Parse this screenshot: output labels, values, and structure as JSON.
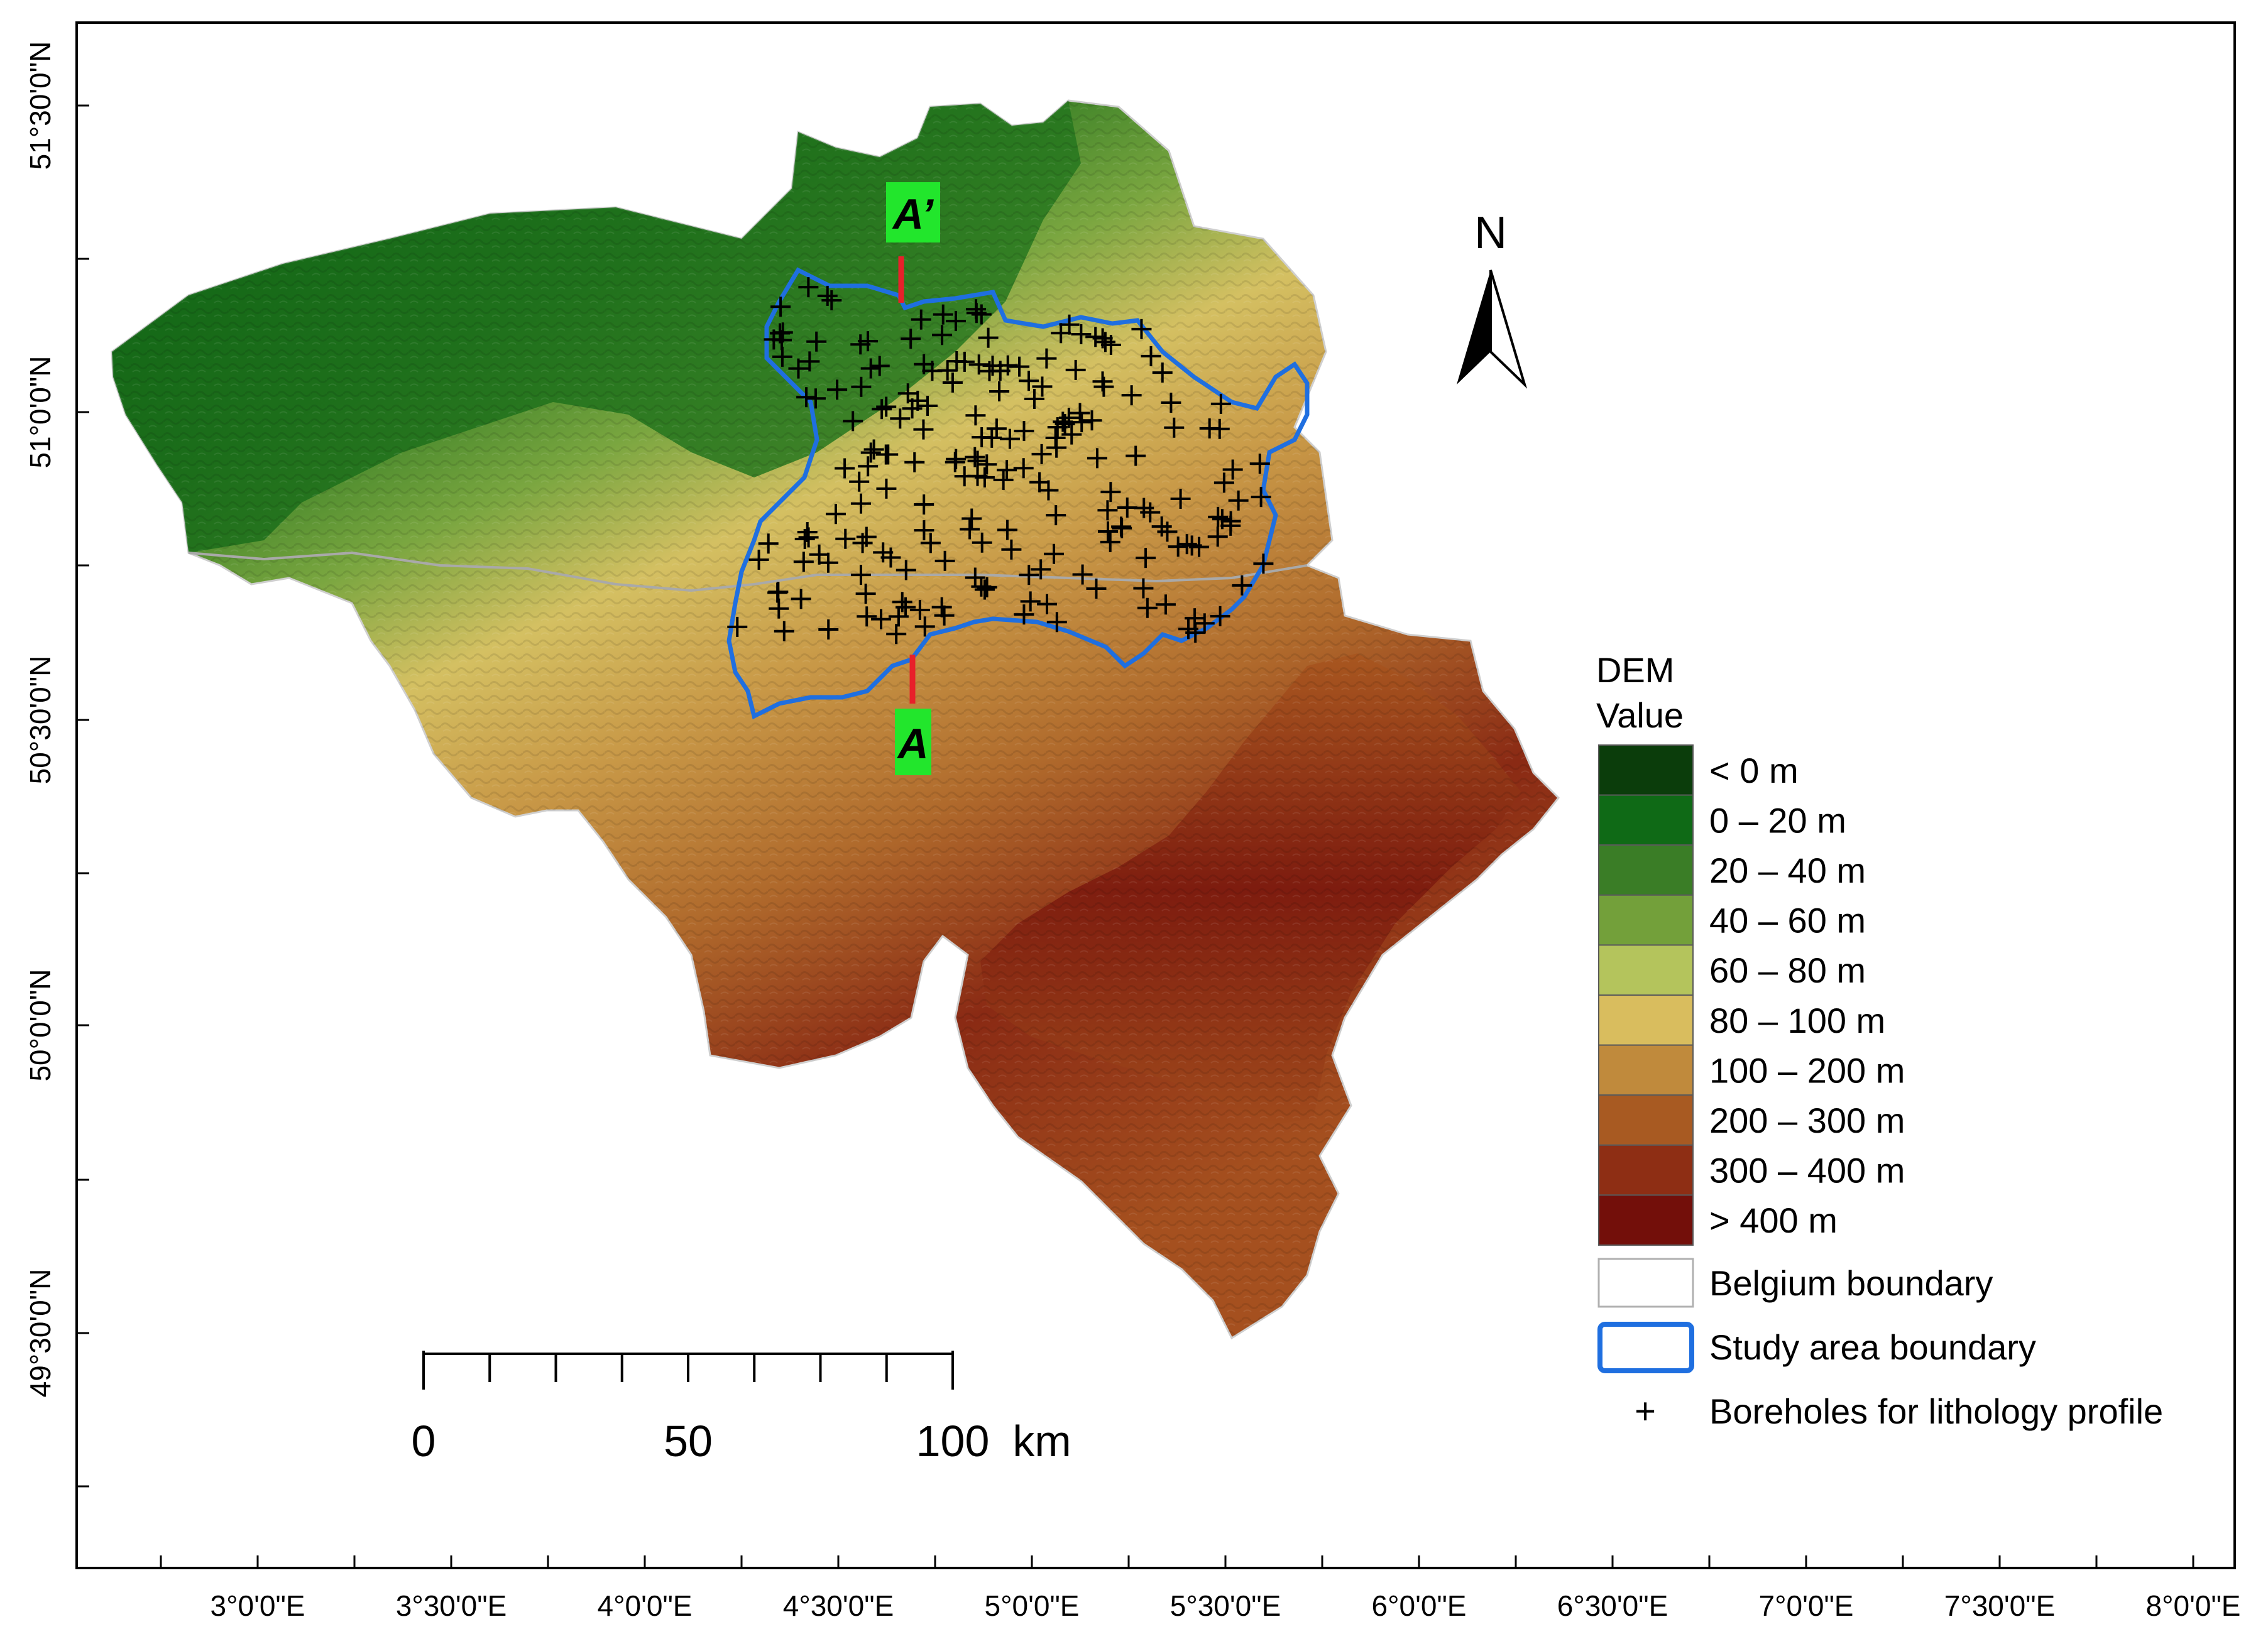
{
  "map": {
    "lat_labels": [
      "51°30'0\"N",
      "51°0'0\"N",
      "50°30'0\"N",
      "50°0'0\"N",
      "49°30'0\"N"
    ],
    "lon_labels": [
      "3°0'0\"E",
      "3°30'0\"E",
      "4°0'0\"E",
      "4°30'0\"E",
      "5°0'0\"E",
      "5°30'0\"E",
      "6°0'0\"E",
      "6°30'0\"E",
      "7°0'0\"E",
      "7°30'0\"E",
      "8°0'0\"E"
    ],
    "profile": {
      "start_label": "A",
      "end_label": "A’",
      "line_color": "#e8202a",
      "label_bg": "#22e62c"
    },
    "north_label": "N",
    "scale_bar": {
      "labels": [
        "0",
        "50",
        "100"
      ],
      "unit": "km"
    },
    "study_area_color": "#1f6fe0"
  },
  "legend": {
    "title_line1": "DEM",
    "title_line2": "Value",
    "dem_classes": [
      {
        "label": "< 0 m",
        "color": "#0b3d0b"
      },
      {
        "label": "0 – 20 m",
        "color": "#0f6a16"
      },
      {
        "label": "20 – 40 m",
        "color": "#3a7d26"
      },
      {
        "label": "40 – 60 m",
        "color": "#73a03a"
      },
      {
        "label": "60 – 80 m",
        "color": "#b4c45c"
      },
      {
        "label": "80 – 100 m",
        "color": "#d9bd5e"
      },
      {
        "label": "100 – 200 m",
        "color": "#c08a3c"
      },
      {
        "label": "200 – 300 m",
        "color": "#a85a22"
      },
      {
        "label": "300 – 400 m",
        "color": "#8e2e14"
      },
      {
        "label": "> 400 m",
        "color": "#730f0a"
      }
    ],
    "belgium_boundary": "Belgium boundary",
    "study_area_boundary": "Study area boundary",
    "boreholes": "Boreholes for lithology profile",
    "borehole_symbol": "+"
  }
}
